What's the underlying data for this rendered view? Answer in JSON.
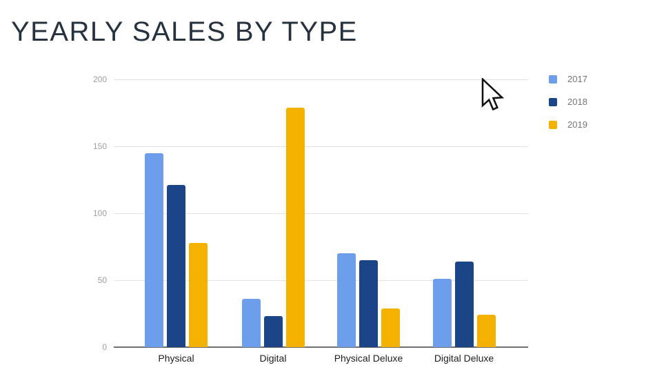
{
  "title": "YEARLY SALES BY TYPE",
  "title_color": "#26323E",
  "cursor_icon": "arrow-pointer",
  "chart_data": {
    "type": "bar",
    "title": "YEARLY SALES BY TYPE",
    "categories": [
      "Physical",
      "Digital",
      "Physical Deluxe",
      "Digital Deluxe"
    ],
    "series": [
      {
        "name": "2017",
        "color": "#6D9EEB",
        "values": [
          145,
          36,
          70,
          51
        ]
      },
      {
        "name": "2018",
        "color": "#1C4587",
        "values": [
          121,
          23,
          65,
          64
        ]
      },
      {
        "name": "2019",
        "color": "#F5B100",
        "values": [
          78,
          179,
          29,
          24
        ]
      }
    ],
    "xlabel": "",
    "ylabel": "",
    "ylim": [
      0,
      200
    ],
    "yticks": [
      0,
      50,
      100,
      150,
      200
    ],
    "grid": true,
    "legend_position": "right",
    "style": {
      "background": "#FFFFFF",
      "grid_color": "#E2E2E2",
      "axis_color": "#6E6E6E",
      "tick_label_color": "#9E9E9E",
      "category_label_color": "#1E1E1E",
      "legend_text_color": "#757575"
    }
  }
}
